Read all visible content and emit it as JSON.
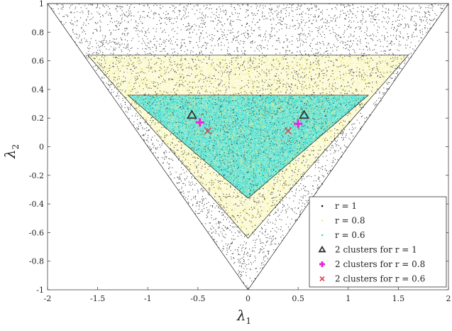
{
  "chart_data": {
    "type": "scatter",
    "title": "",
    "xlabel": "λ",
    "xlabel_sub": "1",
    "ylabel": "λ",
    "ylabel_sub": "2",
    "xlim": [
      -2,
      2
    ],
    "ylim": [
      -1,
      1
    ],
    "xticks": [
      -2,
      -1.5,
      -1,
      -0.5,
      0,
      0.5,
      1,
      1.5,
      2
    ],
    "yticks": [
      -1,
      -0.8,
      -0.6,
      -0.4,
      -0.2,
      0,
      0.2,
      0.4,
      0.6,
      0.8,
      1
    ],
    "grid": false,
    "legend_position": "bottom-right",
    "series": [
      {
        "name": "r = 1",
        "color": "#000000",
        "marker": "dot",
        "region": {
          "vertices": [
            [
              -2,
              1
            ],
            [
              2,
              1
            ],
            [
              0,
              -1
            ]
          ],
          "count": 5200
        }
      },
      {
        "name": "r = 0.8",
        "color": "#f2ee78",
        "marker": "dot",
        "region": {
          "vertices": [
            [
              -1.6,
              0.64
            ],
            [
              1.6,
              0.64
            ],
            [
              0,
              -0.64
            ]
          ],
          "count": 5200
        }
      },
      {
        "name": "r = 0.6",
        "color": "#25d8d3",
        "marker": "dot",
        "region": {
          "vertices": [
            [
              -1.2,
              0.36
            ],
            [
              1.2,
              0.36
            ],
            [
              0,
              -0.36
            ]
          ],
          "count": 5200
        }
      }
    ],
    "clusters": [
      {
        "name": "2 clusters for r = 1",
        "marker": "triangle",
        "color": "#333333",
        "points": [
          [
            -0.56,
            0.22
          ],
          [
            0.56,
            0.22
          ]
        ]
      },
      {
        "name": "2 clusters for r = 0.8",
        "marker": "plus",
        "color": "#ee22dd",
        "points": [
          [
            -0.48,
            0.17
          ],
          [
            0.5,
            0.16
          ]
        ]
      },
      {
        "name": "2 clusters for r = 0.6",
        "marker": "x",
        "color": "#d94450",
        "points": [
          [
            -0.4,
            0.11
          ],
          [
            0.4,
            0.11
          ]
        ]
      }
    ],
    "legend": {
      "entries": [
        "r = 1",
        "r = 0.8",
        "r = 0.6",
        "2 clusters for r = 1",
        "2 clusters for r = 0.8",
        "2 clusters for r = 0.6"
      ]
    }
  }
}
